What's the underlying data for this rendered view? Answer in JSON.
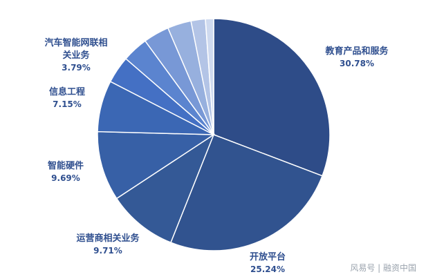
{
  "chart_data": {
    "type": "pie",
    "title": "",
    "slices": [
      {
        "label": "教育产品和服务",
        "label_lines": [
          "教育产品和服务"
        ],
        "value": 30.78,
        "pct": "30.78%",
        "color": "#2e4c88"
      },
      {
        "label": "开放平台",
        "label_lines": [
          "开放平台"
        ],
        "value": 25.24,
        "pct": "25.24%",
        "color": "#31538f"
      },
      {
        "label": "运营商相关业务",
        "label_lines": [
          "运营商相关业务"
        ],
        "value": 9.71,
        "pct": "9.71%",
        "color": "#345996"
      },
      {
        "label": "智能硬件",
        "label_lines": [
          "智能硬件"
        ],
        "value": 9.69,
        "pct": "9.69%",
        "color": "#3760a6"
      },
      {
        "label": "信息工程",
        "label_lines": [
          "信息工程"
        ],
        "value": 7.15,
        "pct": "7.15%",
        "color": "#3b67b4"
      },
      {
        "label": "汽车智能网联相关业务",
        "label_lines": [
          "汽车智能网联相",
          "关业务"
        ],
        "value": 3.79,
        "pct": "3.79%",
        "color": "#4470c4"
      },
      {
        "label": "",
        "label_lines": [],
        "value": 3.6,
        "pct": "",
        "color": "#5b84cf"
      },
      {
        "label": "",
        "label_lines": [],
        "value": 3.6,
        "pct": "",
        "color": "#7898d6"
      },
      {
        "label": "",
        "label_lines": [],
        "value": 3.3,
        "pct": "",
        "color": "#97b0de"
      },
      {
        "label": "",
        "label_lines": [],
        "value": 2.0,
        "pct": "",
        "color": "#b3c4e6"
      },
      {
        "label": "",
        "label_lines": [],
        "value": 1.14,
        "pct": "",
        "color": "#cfdaef"
      }
    ]
  },
  "watermark": "风易号 | 融资中国"
}
